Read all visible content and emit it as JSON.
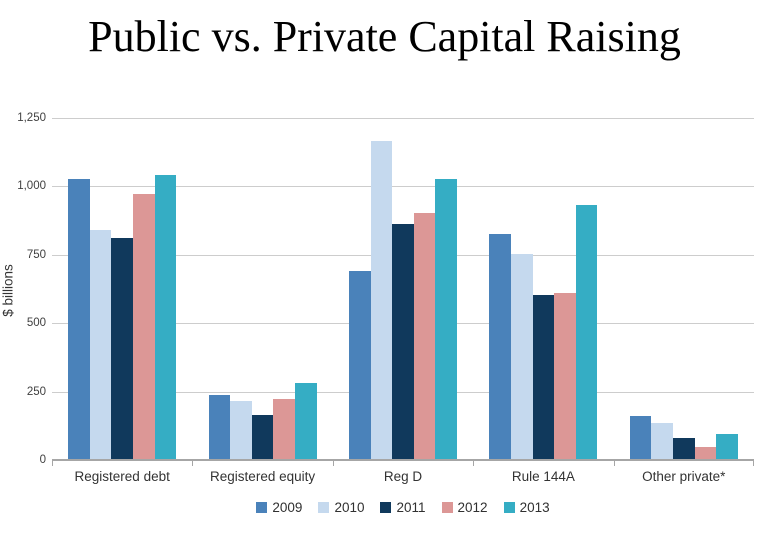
{
  "title": "Public vs. Private Capital Raising",
  "chart_data": {
    "type": "bar",
    "title": "Public vs. Private Capital Raising",
    "ylabel": "$ billions",
    "xlabel": "",
    "ylim": [
      0,
      1250
    ],
    "yticks": [
      0,
      250,
      500,
      750,
      1000,
      1250
    ],
    "ytick_labels": [
      "0",
      "250",
      "500",
      "750",
      "1,000",
      "1,250"
    ],
    "grid": true,
    "legend_position": "bottom",
    "categories": [
      "Registered debt",
      "Registered equity",
      "Reg D",
      "Rule 144A",
      "Other private*"
    ],
    "series": [
      {
        "name": "2009",
        "color": "#4a82ba",
        "values": [
          1030,
          240,
          695,
          830,
          165
        ]
      },
      {
        "name": "2010",
        "color": "#c5d9ee",
        "values": [
          845,
          220,
          1170,
          755,
          140
        ]
      },
      {
        "name": "2011",
        "color": "#10395c",
        "values": [
          815,
          170,
          865,
          605,
          85
        ]
      },
      {
        "name": "2012",
        "color": "#dc9796",
        "values": [
          975,
          225,
          905,
          615,
          50
        ]
      },
      {
        "name": "2013",
        "color": "#35adc4",
        "values": [
          1045,
          285,
          1030,
          935,
          100
        ]
      }
    ]
  }
}
